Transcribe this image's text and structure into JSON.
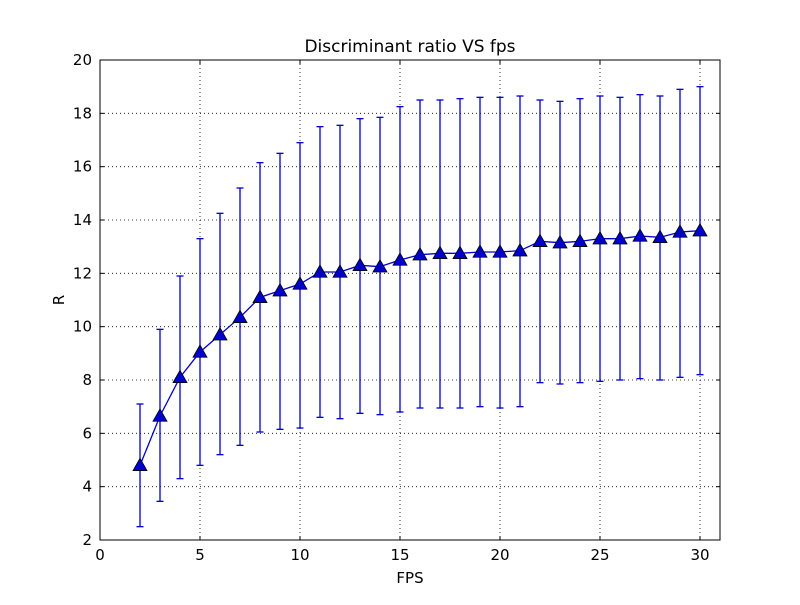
{
  "chart_data": {
    "type": "line",
    "title": "Discriminant ratio VS fps",
    "xlabel": "FPS",
    "ylabel": "R",
    "xlim": [
      0,
      31
    ],
    "ylim": [
      2,
      20
    ],
    "xticks": [
      0,
      5,
      10,
      15,
      20,
      25,
      30
    ],
    "yticks": [
      2,
      4,
      6,
      8,
      10,
      12,
      14,
      16,
      18,
      20
    ],
    "grid": true,
    "grid_style": "dotted",
    "marker": "triangle",
    "color": "#0000cc",
    "series": [
      {
        "x": [
          2,
          3,
          4,
          5,
          6,
          7,
          8,
          9,
          10,
          11,
          12,
          13,
          14,
          15,
          16,
          17,
          18,
          19,
          20,
          21,
          22,
          23,
          24,
          25,
          26,
          27,
          28,
          29,
          30
        ],
        "y": [
          4.8,
          6.65,
          8.1,
          9.05,
          9.7,
          10.35,
          11.1,
          11.35,
          11.6,
          12.05,
          12.05,
          12.3,
          12.25,
          12.5,
          12.7,
          12.75,
          12.75,
          12.8,
          12.8,
          12.85,
          13.2,
          13.15,
          13.2,
          13.3,
          13.3,
          13.4,
          13.35,
          13.55,
          13.6
        ],
        "err_upper": [
          7.1,
          9.9,
          11.9,
          13.3,
          14.25,
          15.2,
          16.15,
          16.5,
          16.9,
          17.5,
          17.55,
          17.8,
          17.85,
          18.25,
          18.5,
          18.5,
          18.55,
          18.6,
          18.6,
          18.65,
          18.5,
          18.45,
          18.55,
          18.65,
          18.6,
          18.7,
          18.65,
          18.9,
          19.0
        ],
        "err_lower": [
          2.5,
          3.45,
          4.3,
          4.8,
          5.2,
          5.55,
          6.05,
          6.15,
          6.2,
          6.6,
          6.55,
          6.75,
          6.7,
          6.8,
          6.95,
          6.95,
          6.95,
          7.0,
          6.95,
          7.0,
          7.9,
          7.85,
          7.9,
          7.95,
          8.0,
          8.05,
          8.0,
          8.1,
          8.2
        ]
      }
    ]
  }
}
